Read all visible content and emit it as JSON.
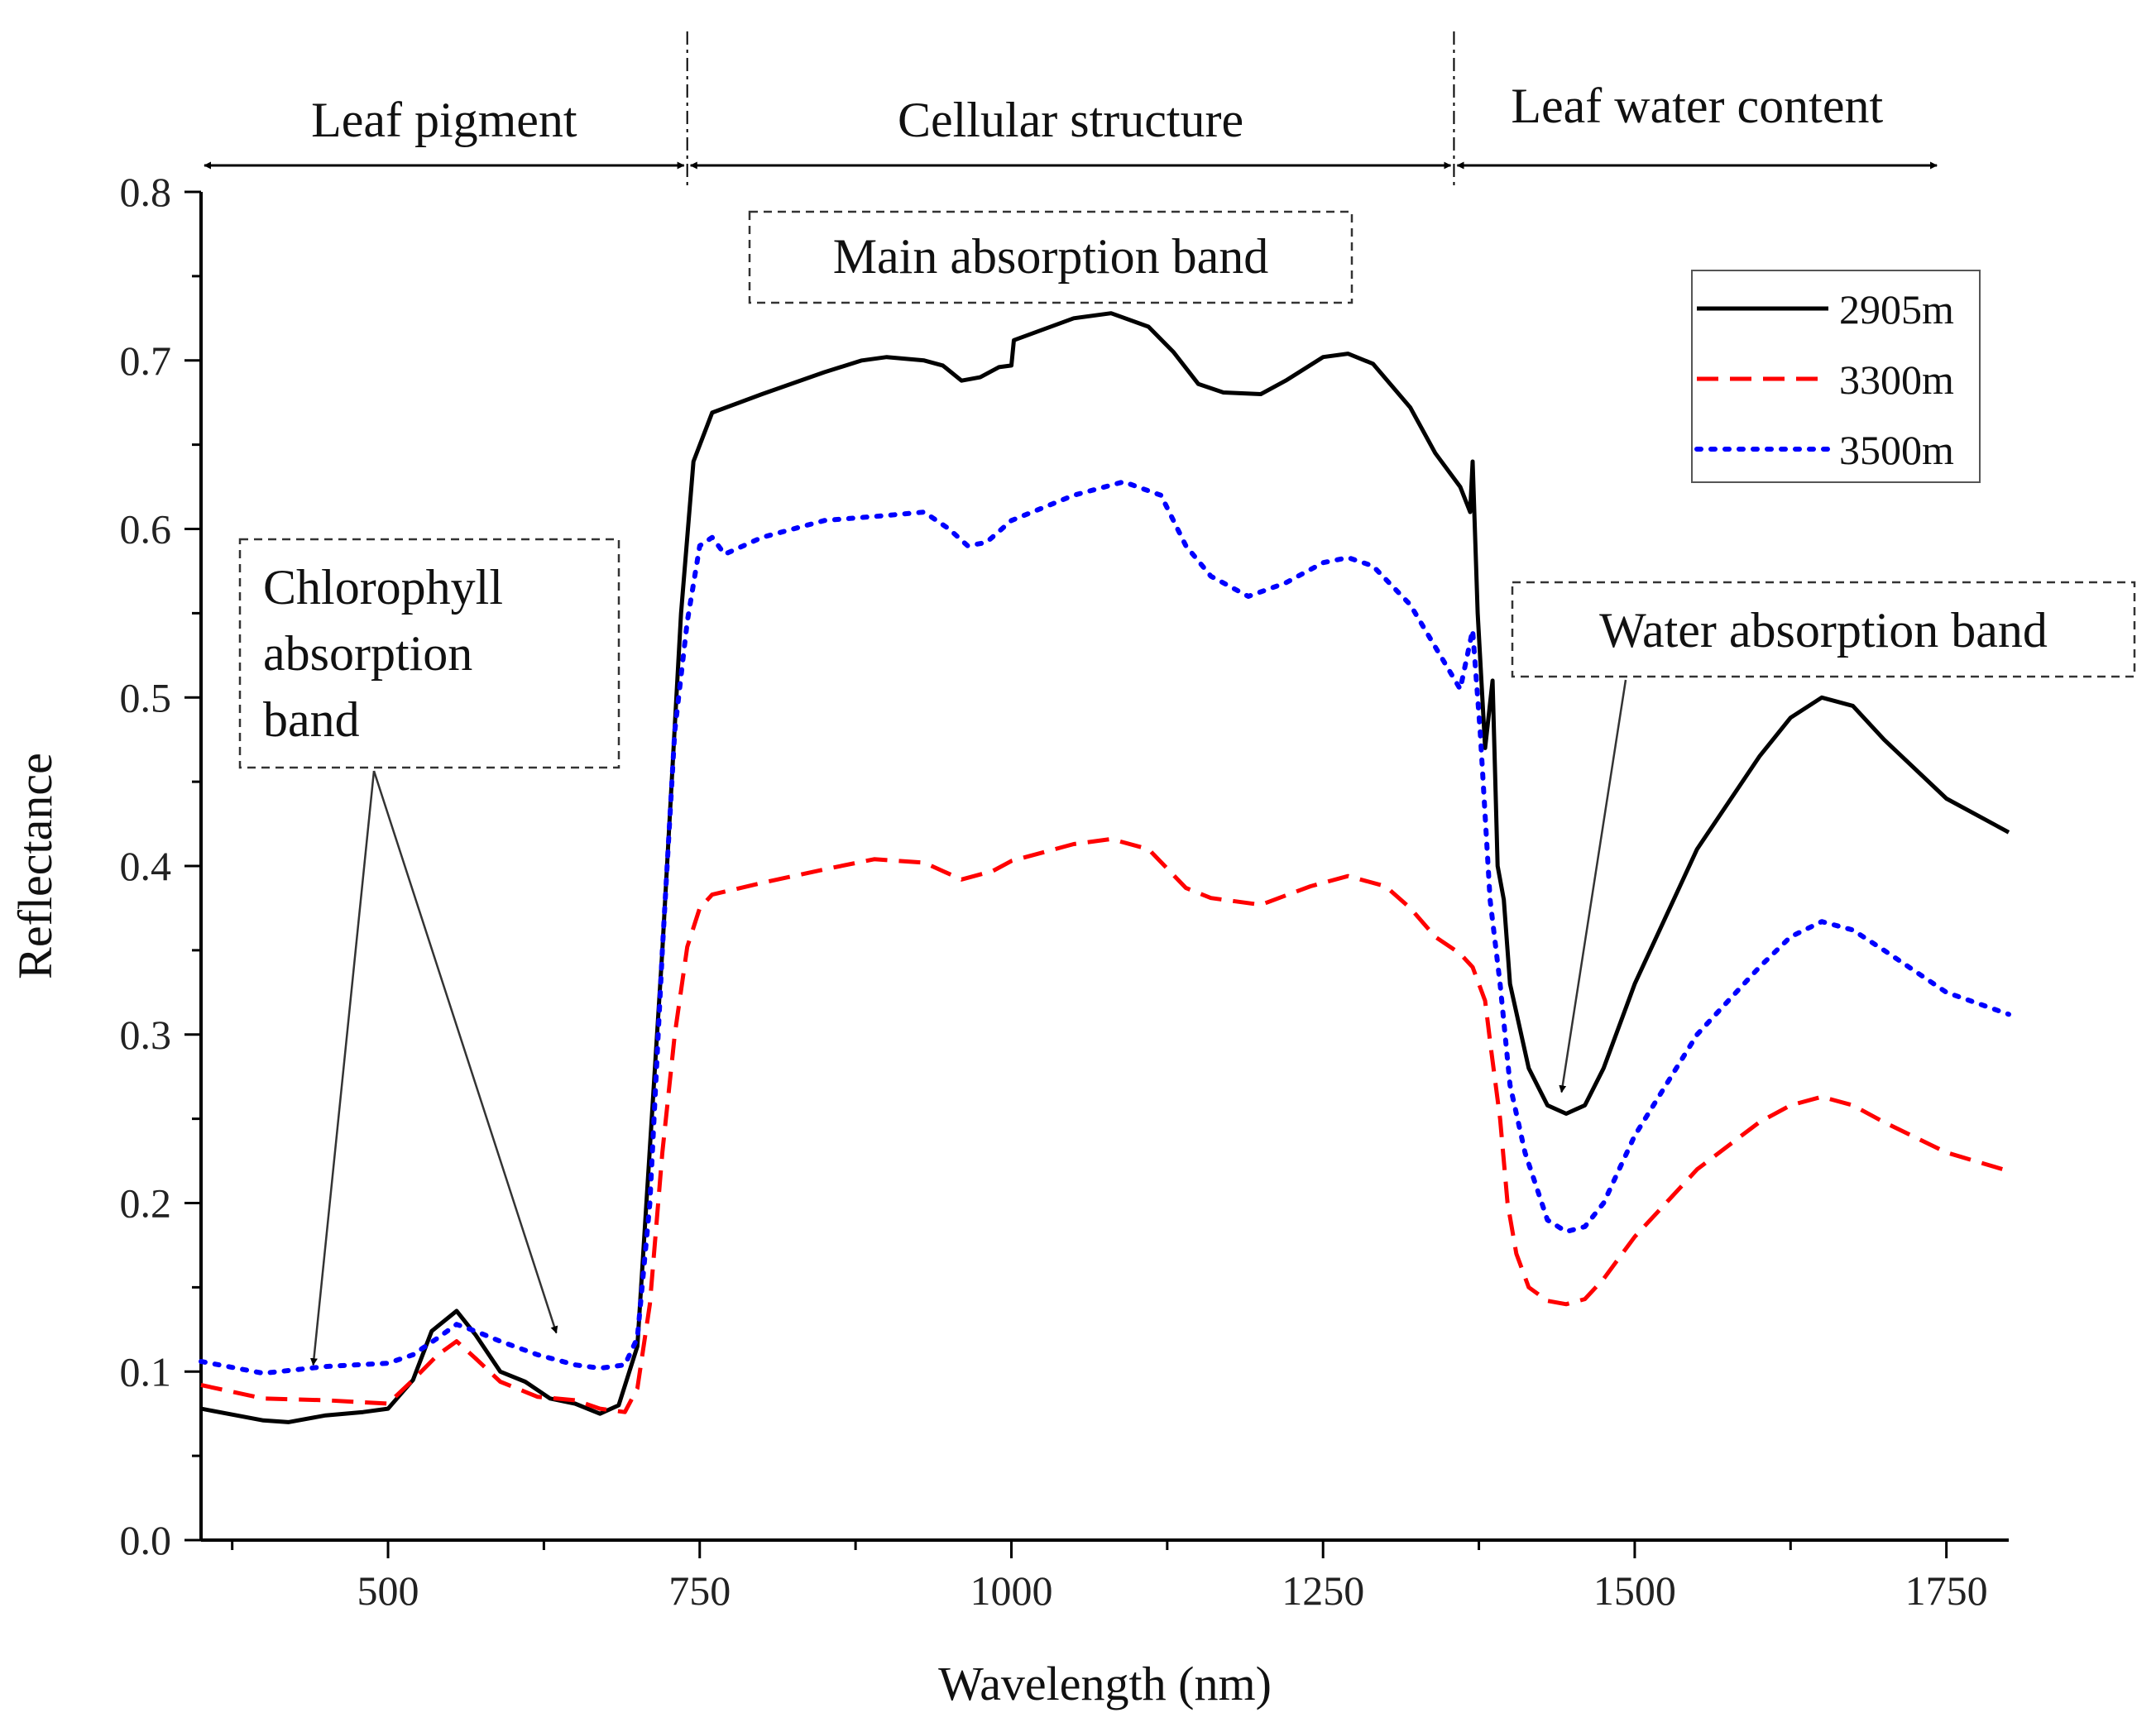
{
  "chart_data": {
    "type": "line",
    "xlabel": "Wavelength (nm)",
    "ylabel": "Reflectance",
    "xlim": [
      350,
      1800
    ],
    "ylim": [
      0.0,
      0.8
    ],
    "x_ticks": [
      500,
      750,
      1000,
      1250,
      1500,
      1750
    ],
    "y_ticks": [
      0.0,
      0.1,
      0.2,
      0.3,
      0.4,
      0.5,
      0.6,
      0.7,
      0.8
    ],
    "x_tick_labels": [
      "500",
      "750",
      "1000",
      "1250",
      "1500",
      "1750"
    ],
    "y_tick_labels": [
      "0.0",
      "0.1",
      "0.2",
      "0.3",
      "0.4",
      "0.5",
      "0.6",
      "0.7",
      "0.8"
    ],
    "grid": false,
    "legend_position": "top-right",
    "series": [
      {
        "name": "2905m",
        "color": "#000000",
        "style": "solid",
        "points": [
          [
            350,
            0.078
          ],
          [
            400,
            0.071
          ],
          [
            420,
            0.07
          ],
          [
            450,
            0.074
          ],
          [
            480,
            0.076
          ],
          [
            500,
            0.078
          ],
          [
            520,
            0.095
          ],
          [
            535,
            0.124
          ],
          [
            555,
            0.136
          ],
          [
            570,
            0.122
          ],
          [
            590,
            0.1
          ],
          [
            610,
            0.094
          ],
          [
            630,
            0.084
          ],
          [
            650,
            0.081
          ],
          [
            670,
            0.075
          ],
          [
            685,
            0.08
          ],
          [
            700,
            0.115
          ],
          [
            720,
            0.35
          ],
          [
            735,
            0.55
          ],
          [
            745,
            0.64
          ],
          [
            760,
            0.669
          ],
          [
            800,
            0.68
          ],
          [
            850,
            0.693
          ],
          [
            880,
            0.7
          ],
          [
            900,
            0.702
          ],
          [
            930,
            0.7
          ],
          [
            945,
            0.697
          ],
          [
            960,
            0.688
          ],
          [
            975,
            0.69
          ],
          [
            990,
            0.696
          ],
          [
            1000,
            0.697
          ],
          [
            1002,
            0.712
          ],
          [
            1050,
            0.725
          ],
          [
            1080,
            0.728
          ],
          [
            1110,
            0.72
          ],
          [
            1130,
            0.705
          ],
          [
            1150,
            0.686
          ],
          [
            1170,
            0.681
          ],
          [
            1200,
            0.68
          ],
          [
            1220,
            0.688
          ],
          [
            1250,
            0.702
          ],
          [
            1270,
            0.704
          ],
          [
            1290,
            0.698
          ],
          [
            1320,
            0.672
          ],
          [
            1340,
            0.645
          ],
          [
            1360,
            0.625
          ],
          [
            1368,
            0.61
          ],
          [
            1370,
            0.64
          ],
          [
            1374,
            0.55
          ],
          [
            1380,
            0.47
          ],
          [
            1386,
            0.51
          ],
          [
            1390,
            0.4
          ],
          [
            1395,
            0.38
          ],
          [
            1400,
            0.33
          ],
          [
            1415,
            0.28
          ],
          [
            1430,
            0.258
          ],
          [
            1445,
            0.253
          ],
          [
            1460,
            0.258
          ],
          [
            1475,
            0.28
          ],
          [
            1500,
            0.33
          ],
          [
            1550,
            0.41
          ],
          [
            1600,
            0.465
          ],
          [
            1625,
            0.488
          ],
          [
            1650,
            0.5
          ],
          [
            1675,
            0.495
          ],
          [
            1700,
            0.475
          ],
          [
            1750,
            0.44
          ],
          [
            1800,
            0.42
          ]
        ]
      },
      {
        "name": "3300m",
        "color": "#ff0000",
        "style": "dashed",
        "points": [
          [
            350,
            0.092
          ],
          [
            400,
            0.084
          ],
          [
            450,
            0.083
          ],
          [
            500,
            0.081
          ],
          [
            520,
            0.095
          ],
          [
            540,
            0.11
          ],
          [
            555,
            0.118
          ],
          [
            570,
            0.108
          ],
          [
            590,
            0.094
          ],
          [
            620,
            0.085
          ],
          [
            650,
            0.083
          ],
          [
            670,
            0.078
          ],
          [
            690,
            0.076
          ],
          [
            700,
            0.09
          ],
          [
            710,
            0.14
          ],
          [
            720,
            0.23
          ],
          [
            730,
            0.3
          ],
          [
            740,
            0.352
          ],
          [
            750,
            0.375
          ],
          [
            760,
            0.383
          ],
          [
            800,
            0.39
          ],
          [
            850,
            0.398
          ],
          [
            890,
            0.404
          ],
          [
            930,
            0.402
          ],
          [
            960,
            0.392
          ],
          [
            985,
            0.397
          ],
          [
            1000,
            0.403
          ],
          [
            1050,
            0.413
          ],
          [
            1080,
            0.416
          ],
          [
            1110,
            0.41
          ],
          [
            1140,
            0.387
          ],
          [
            1160,
            0.381
          ],
          [
            1200,
            0.377
          ],
          [
            1240,
            0.388
          ],
          [
            1270,
            0.394
          ],
          [
            1300,
            0.388
          ],
          [
            1320,
            0.375
          ],
          [
            1340,
            0.358
          ],
          [
            1360,
            0.348
          ],
          [
            1370,
            0.34
          ],
          [
            1380,
            0.32
          ],
          [
            1385,
            0.29
          ],
          [
            1392,
            0.25
          ],
          [
            1398,
            0.2
          ],
          [
            1405,
            0.17
          ],
          [
            1415,
            0.15
          ],
          [
            1430,
            0.142
          ],
          [
            1445,
            0.14
          ],
          [
            1460,
            0.143
          ],
          [
            1475,
            0.155
          ],
          [
            1500,
            0.18
          ],
          [
            1550,
            0.22
          ],
          [
            1600,
            0.248
          ],
          [
            1625,
            0.258
          ],
          [
            1650,
            0.263
          ],
          [
            1675,
            0.258
          ],
          [
            1700,
            0.248
          ],
          [
            1750,
            0.23
          ],
          [
            1800,
            0.219
          ]
        ]
      },
      {
        "name": "3500m",
        "color": "#0000ff",
        "style": "dotted",
        "points": [
          [
            350,
            0.106
          ],
          [
            400,
            0.099
          ],
          [
            450,
            0.103
          ],
          [
            500,
            0.105
          ],
          [
            520,
            0.11
          ],
          [
            540,
            0.12
          ],
          [
            555,
            0.128
          ],
          [
            570,
            0.124
          ],
          [
            590,
            0.118
          ],
          [
            620,
            0.11
          ],
          [
            650,
            0.104
          ],
          [
            670,
            0.102
          ],
          [
            690,
            0.104
          ],
          [
            700,
            0.12
          ],
          [
            710,
            0.2
          ],
          [
            720,
            0.35
          ],
          [
            730,
            0.48
          ],
          [
            740,
            0.545
          ],
          [
            750,
            0.59
          ],
          [
            760,
            0.595
          ],
          [
            770,
            0.585
          ],
          [
            800,
            0.595
          ],
          [
            850,
            0.605
          ],
          [
            900,
            0.608
          ],
          [
            930,
            0.61
          ],
          [
            950,
            0.6
          ],
          [
            965,
            0.59
          ],
          [
            980,
            0.592
          ],
          [
            1000,
            0.605
          ],
          [
            1050,
            0.62
          ],
          [
            1090,
            0.628
          ],
          [
            1120,
            0.62
          ],
          [
            1140,
            0.59
          ],
          [
            1160,
            0.572
          ],
          [
            1190,
            0.56
          ],
          [
            1220,
            0.568
          ],
          [
            1250,
            0.58
          ],
          [
            1270,
            0.583
          ],
          [
            1290,
            0.578
          ],
          [
            1320,
            0.555
          ],
          [
            1340,
            0.53
          ],
          [
            1360,
            0.505
          ],
          [
            1370,
            0.54
          ],
          [
            1376,
            0.48
          ],
          [
            1384,
            0.38
          ],
          [
            1392,
            0.33
          ],
          [
            1400,
            0.27
          ],
          [
            1412,
            0.23
          ],
          [
            1430,
            0.19
          ],
          [
            1445,
            0.183
          ],
          [
            1460,
            0.186
          ],
          [
            1475,
            0.2
          ],
          [
            1500,
            0.24
          ],
          [
            1550,
            0.3
          ],
          [
            1600,
            0.34
          ],
          [
            1625,
            0.358
          ],
          [
            1650,
            0.367
          ],
          [
            1675,
            0.362
          ],
          [
            1700,
            0.35
          ],
          [
            1750,
            0.325
          ],
          [
            1800,
            0.312
          ]
        ]
      }
    ],
    "annotations": {
      "regions": [
        {
          "label": "Leaf pigment",
          "from": 350,
          "to": 740
        },
        {
          "label": "Cellular structure",
          "from": 740,
          "to": 1355
        },
        {
          "label": "Leaf water content",
          "from": 1355,
          "to": 1745
        }
      ],
      "boxes": {
        "main": {
          "lines": [
            "Main absorption band"
          ]
        },
        "chlorophyll": {
          "lines": [
            "Chlorophyll",
            "absorption",
            "band"
          ],
          "arrow_targets": [
            [
              440,
              0.1
            ],
            [
              635,
              0.119
            ]
          ]
        },
        "water": {
          "lines": [
            "Water absorption band"
          ],
          "arrow_targets": [
            [
              1440,
              0.255
            ]
          ]
        }
      }
    }
  }
}
